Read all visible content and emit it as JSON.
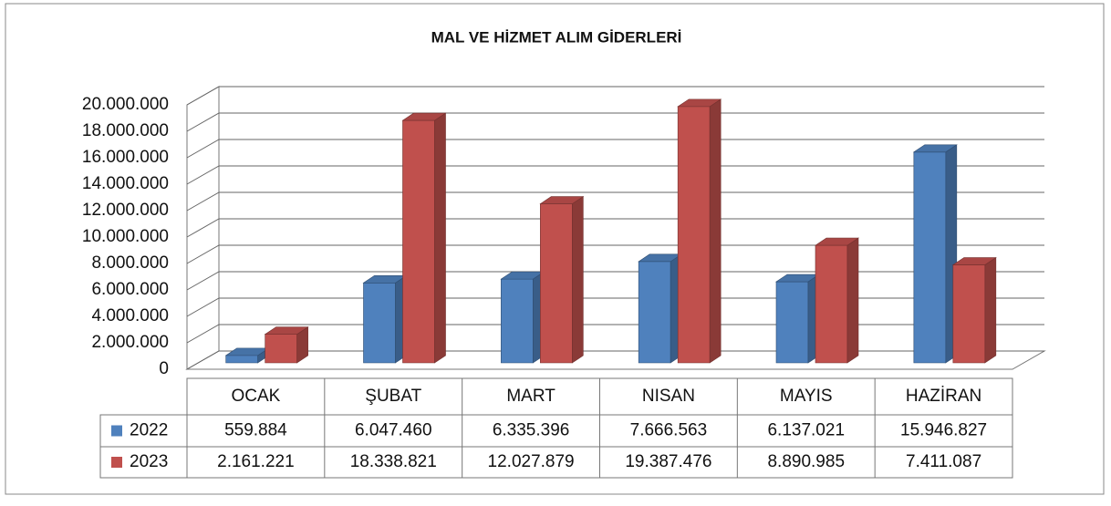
{
  "chart_data": {
    "type": "bar3d",
    "title": "MAL VE HİZMET ALIM GİDERLERİ",
    "categories": [
      "OCAK",
      "ŞUBAT",
      "MART",
      "NISAN",
      "MAYIS",
      "HAZİRAN"
    ],
    "series": [
      {
        "name": "2022",
        "color": "#4f81bd",
        "values": [
          559884,
          6047460,
          6335396,
          7666563,
          6137021,
          15946827
        ],
        "value_labels": [
          "559.884",
          "6.047.460",
          "6.335.396",
          "7.666.563",
          "6.137.021",
          "15.946.827"
        ]
      },
      {
        "name": "2023",
        "color": "#c0504d",
        "values": [
          2161221,
          18338821,
          12027879,
          19387476,
          8890985,
          7411087
        ],
        "value_labels": [
          "2.161.221",
          "18.338.821",
          "12.027.879",
          "19.387.476",
          "8.890.985",
          "7.411.087"
        ]
      }
    ],
    "ylim": [
      0,
      20000000
    ],
    "yticks": [
      0,
      {
        "value": 2000000,
        "label": "2.000.000"
      },
      {
        "value": 4000000,
        "label": "4.000.000"
      },
      {
        "value": 6000000,
        "label": "6.000.000"
      },
      {
        "value": 8000000,
        "label": "8.000.000"
      },
      {
        "value": 10000000,
        "label": "10.000.000"
      },
      {
        "value": 12000000,
        "label": "12.000.000"
      },
      {
        "value": 14000000,
        "label": "14.000.000"
      },
      {
        "value": 16000000,
        "label": "16.000.000"
      },
      {
        "value": 18000000,
        "label": "18.000.000"
      },
      {
        "value": 20000000,
        "label": "20.000.000"
      }
    ],
    "grid": true
  }
}
